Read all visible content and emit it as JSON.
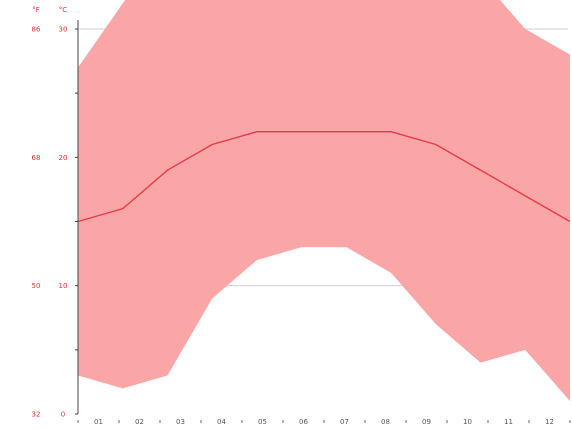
{
  "chart_data": {
    "type": "area",
    "title": "",
    "xlabel": "",
    "ylabel": "",
    "categories": [
      "01",
      "02",
      "03",
      "04",
      "05",
      "06",
      "07",
      "08",
      "09",
      "10",
      "11",
      "12"
    ],
    "series": [
      {
        "role": "band",
        "lower": [
          3,
          2,
          3,
          9,
          12,
          13,
          13,
          11,
          7,
          4,
          5,
          1
        ],
        "upper": [
          27,
          32,
          37,
          39,
          38,
          36,
          35,
          36,
          38,
          34,
          30,
          28
        ]
      },
      {
        "role": "line",
        "values": [
          15,
          16,
          19,
          21,
          22,
          22,
          22,
          22,
          21,
          19,
          17,
          15
        ]
      }
    ],
    "axes": {
      "left_outer": {
        "header": "°F",
        "ticks": [
          "32",
          "50",
          "68",
          "86"
        ]
      },
      "left_inner": {
        "header": "°C",
        "ticks": [
          "0",
          "10",
          "20",
          "30"
        ]
      }
    },
    "ylim": [
      0,
      30
    ],
    "grid": true,
    "legend": "none",
    "colors": {
      "band": "#fba6a6",
      "line": "#e83a4a",
      "axis_labels": "#e03030",
      "grid": "#cfcfcf"
    }
  }
}
